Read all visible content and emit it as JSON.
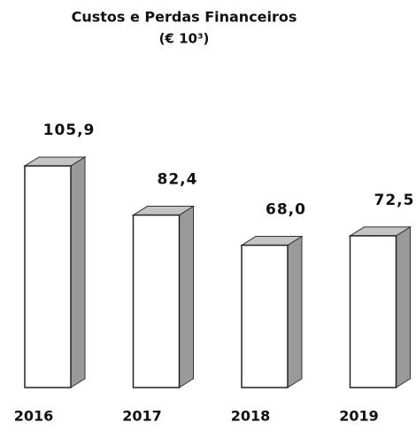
{
  "chart_data": {
    "type": "bar",
    "title": "Custos e Perdas Financeiros",
    "subtitle": "(€ 10³)",
    "categories": [
      "2016",
      "2017",
      "2018",
      "2019"
    ],
    "values": [
      105.9,
      82.4,
      68.0,
      72.5
    ],
    "value_labels": [
      "105,9",
      "82,4",
      "68,0",
      "72,5"
    ],
    "color": "#ffffff"
  }
}
